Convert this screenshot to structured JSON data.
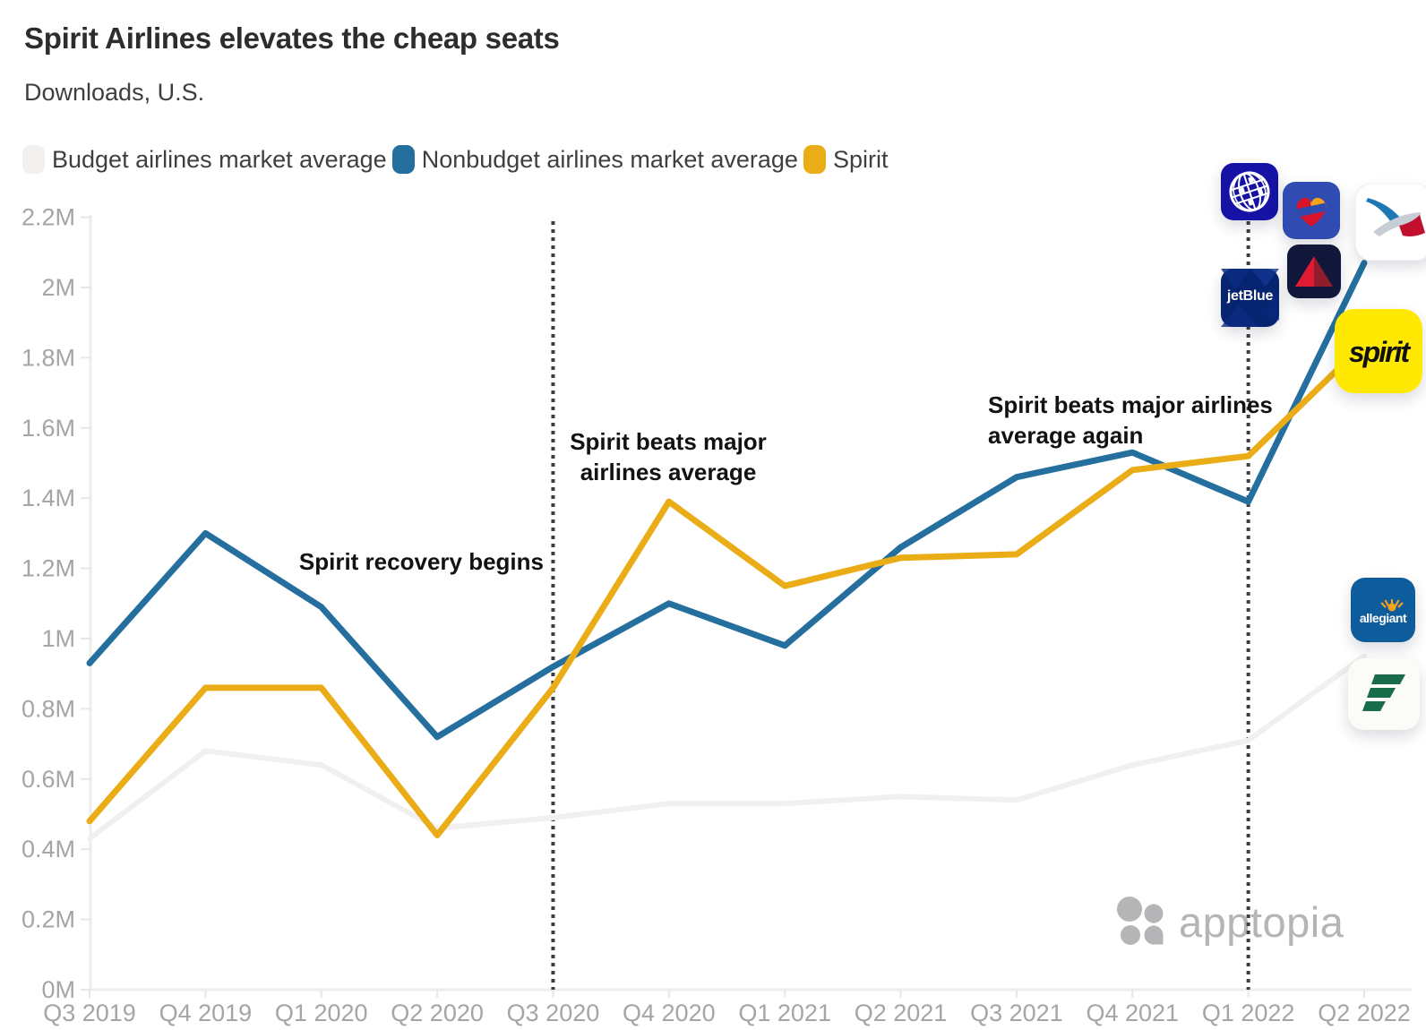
{
  "chart_data": {
    "type": "line",
    "title": "Spirit Airlines elevates the cheap seats",
    "subtitle": "Downloads, U.S.",
    "categories": [
      "Q3 2019",
      "Q4 2019",
      "Q1 2020",
      "Q2 2020",
      "Q3 2020",
      "Q4 2020",
      "Q1 2021",
      "Q2 2021",
      "Q3 2021",
      "Q4 2021",
      "Q1 2022",
      "Q2 2022"
    ],
    "series": [
      {
        "name": "Budget airlines market average",
        "color": "#F1F0EE",
        "values_millions": [
          0.43,
          0.68,
          0.64,
          0.46,
          0.49,
          0.53,
          0.53,
          0.55,
          0.54,
          0.64,
          0.71,
          0.95
        ]
      },
      {
        "name": "Nonbudget airlines market average",
        "color": "#246F9E",
        "values_millions": [
          0.93,
          1.3,
          1.09,
          0.72,
          0.92,
          1.1,
          0.98,
          1.26,
          1.46,
          1.53,
          1.39,
          2.07
        ]
      },
      {
        "name": "Spirit",
        "color": "#EAAD17",
        "values_millions": [
          0.48,
          0.86,
          0.86,
          0.44,
          0.86,
          1.39,
          1.15,
          1.23,
          1.24,
          1.48,
          1.52,
          1.84
        ]
      }
    ],
    "yticks": [
      "0M",
      "0.2M",
      "0.4M",
      "0.6M",
      "0.8M",
      "1M",
      "1.2M",
      "1.4M",
      "1.6M",
      "1.8M",
      "2M",
      "2.2M"
    ],
    "ylim_millions": [
      0,
      2.2
    ],
    "grid": false,
    "legend_position": "top",
    "vlines": [
      "Q3 2020",
      "Q1 2022"
    ]
  },
  "legend": [
    {
      "label": "Budget airlines market average",
      "color": "#F1F0EE"
    },
    {
      "label": "Nonbudget airlines market average",
      "color": "#246F9E"
    },
    {
      "label": "Spirit",
      "color": "#EAAD17"
    }
  ],
  "annotations": {
    "recovery": "Spirit recovery begins",
    "beats_1": [
      "Spirit beats major",
      "airlines average"
    ],
    "beats_2": [
      "Spirit beats major airlines",
      "average again"
    ]
  },
  "icon_labels": {
    "jetblue": "jetBlue",
    "spirit": "spirit",
    "allegiant": "allegiant"
  },
  "icons": [
    "united-airlines-app-icon",
    "southwest-airlines-app-icon",
    "american-airlines-app-icon",
    "jetblue-app-icon",
    "delta-app-icon",
    "spirit-app-icon",
    "allegiant-app-icon",
    "frontier-app-icon",
    "apptopia-logo-icon"
  ],
  "watermark": {
    "label": "apptopia"
  }
}
